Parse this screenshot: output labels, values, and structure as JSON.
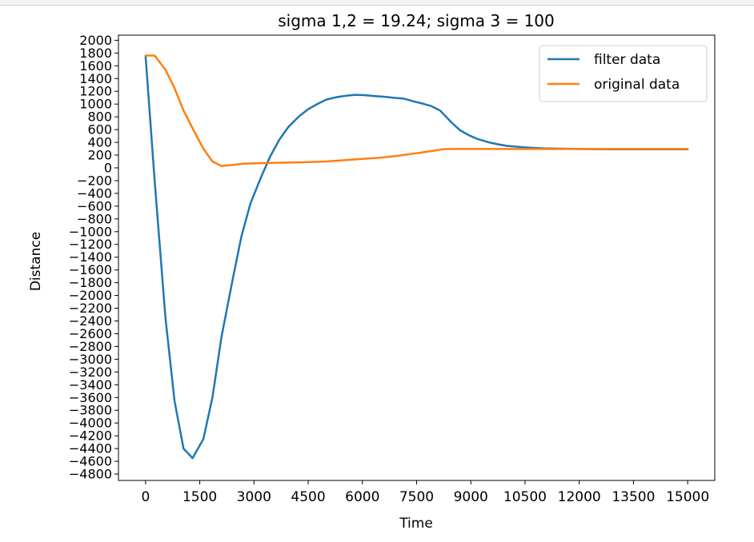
{
  "chart_data": {
    "type": "line",
    "title": "sigma 1,2 = 19.24; sigma 3 = 100",
    "xlabel": "Time",
    "ylabel": "Distance",
    "xlim": [
      -750,
      15750
    ],
    "ylim": [
      -4900,
      2080
    ],
    "xticks": [
      0,
      1500,
      3000,
      4500,
      6000,
      7500,
      9000,
      10500,
      12000,
      13500,
      15000
    ],
    "xtick_labels": [
      "0",
      "1500",
      "3000",
      "4500",
      "6000",
      "7500",
      "9000",
      "10500",
      "12000",
      "13500",
      "15000"
    ],
    "yticks": [
      2000,
      1800,
      1600,
      1400,
      1200,
      1000,
      800,
      600,
      400,
      200,
      0,
      -200,
      -400,
      -600,
      -800,
      -1000,
      -1200,
      -1400,
      -1600,
      -1800,
      -2000,
      -2200,
      -2400,
      -2600,
      -2800,
      -3000,
      -3200,
      -3400,
      -3600,
      -3800,
      -4000,
      -4200,
      -4400,
      -4600,
      -4800
    ],
    "ytick_labels": [
      "2000",
      "1800",
      "1600",
      "1400",
      "1200",
      "1000",
      "800",
      "600",
      "400",
      "200",
      "0",
      "−200",
      "−400",
      "−600",
      "−800",
      "−1000",
      "−1200",
      "−1400",
      "−1600",
      "−1800",
      "−2000",
      "−2200",
      "−2400",
      "−2600",
      "−2800",
      "−3000",
      "−3200",
      "−3400",
      "−3600",
      "−3800",
      "−4000",
      "−4200",
      "−4400",
      "−4600",
      "−4800"
    ],
    "grid": false,
    "legend_position": "top-right",
    "series": [
      {
        "name": "filter data",
        "color": "#1f77b4",
        "x": [
          0,
          250,
          550,
          800,
          1050,
          1300,
          1600,
          1850,
          2100,
          2400,
          2650,
          2900,
          3200,
          3450,
          3700,
          3950,
          4250,
          4500,
          4750,
          5000,
          5300,
          5550,
          5800,
          6050,
          6350,
          6600,
          6850,
          7150,
          7400,
          7650,
          7900,
          8150,
          8450,
          8700,
          8950,
          9200,
          9500,
          9750,
          10000,
          10500,
          11000,
          12000,
          13000,
          14000,
          15000
        ],
        "y": [
          1750,
          -200,
          -2350,
          -3650,
          -4400,
          -4550,
          -4250,
          -3600,
          -2650,
          -1780,
          -1080,
          -560,
          -140,
          180,
          440,
          640,
          810,
          920,
          1000,
          1070,
          1110,
          1130,
          1145,
          1140,
          1125,
          1115,
          1100,
          1085,
          1045,
          1010,
          970,
          900,
          720,
          590,
          510,
          450,
          400,
          370,
          345,
          320,
          305,
          295,
          290,
          290,
          290
        ]
      },
      {
        "name": "original data",
        "color": "#ff7f0e",
        "x": [
          0,
          250,
          550,
          800,
          1050,
          1300,
          1600,
          1850,
          2100,
          2400,
          2700,
          3000,
          3300,
          3600,
          4000,
          4500,
          5000,
          5500,
          6000,
          6500,
          7000,
          7500,
          8000,
          8200,
          8400,
          9000,
          10000,
          11000,
          12000,
          13000,
          14000,
          15000
        ],
        "y": [
          1760,
          1760,
          1540,
          1250,
          900,
          620,
          300,
          100,
          30,
          45,
          65,
          70,
          75,
          80,
          85,
          90,
          100,
          120,
          140,
          160,
          190,
          230,
          270,
          290,
          295,
          295,
          295,
          295,
          295,
          295,
          295,
          295
        ]
      }
    ]
  }
}
